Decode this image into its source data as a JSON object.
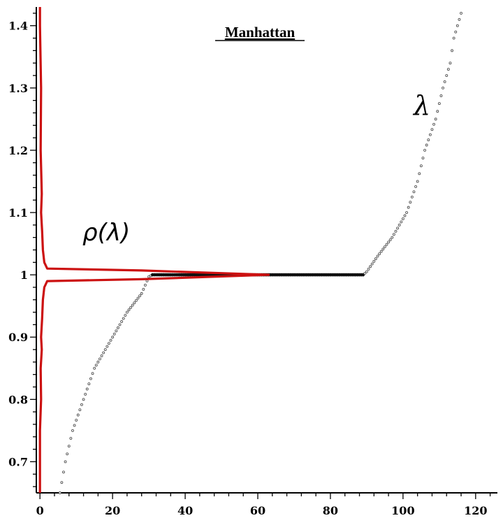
{
  "chart_data": {
    "type": "scatter",
    "title": "Manhattan",
    "xlabel": "",
    "ylabel": "",
    "xlim": [
      -1,
      126
    ],
    "ylim": [
      0.65,
      1.43
    ],
    "grid": false,
    "x_ticks": [
      "0",
      "20",
      "40",
      "60",
      "80",
      "100",
      "120"
    ],
    "y_ticks": [
      "0.7",
      "0.8",
      "0.9",
      "1",
      "1.1",
      "1.2",
      "1.3",
      "1.4"
    ],
    "annotations": [
      "λ",
      "ρ(λ)"
    ],
    "colors": {
      "lambda": "#555555",
      "lambda_flat": "#111111",
      "density": "#cc1111"
    },
    "series": [
      {
        "kind": "eigenvalues",
        "points": [
          [
            5.5,
            0.65
          ],
          [
            7,
            0.7
          ],
          [
            9,
            0.75
          ],
          [
            12,
            0.8
          ],
          [
            15,
            0.85
          ],
          [
            18,
            0.88
          ],
          [
            20,
            0.9
          ],
          [
            24,
            0.94
          ],
          [
            28,
            0.97
          ],
          [
            30,
            0.997
          ],
          [
            31,
            1.0
          ],
          [
            89,
            1.0
          ],
          [
            90,
            1.005
          ],
          [
            93,
            1.03
          ],
          [
            97,
            1.06
          ],
          [
            101,
            1.1
          ],
          [
            104,
            1.15
          ],
          [
            106,
            1.2
          ],
          [
            109,
            1.25
          ],
          [
            111,
            1.3
          ],
          [
            113,
            1.34
          ],
          [
            114,
            1.38
          ],
          [
            116,
            1.42
          ]
        ]
      },
      {
        "kind": "density",
        "points": [
          [
            0,
            0.65
          ],
          [
            0,
            0.7
          ],
          [
            0,
            0.75
          ],
          [
            0.3,
            0.8
          ],
          [
            0.2,
            0.85
          ],
          [
            0.5,
            0.88
          ],
          [
            0.3,
            0.9
          ],
          [
            0.6,
            0.93
          ],
          [
            0.8,
            0.96
          ],
          [
            1.2,
            0.98
          ],
          [
            2,
            0.99
          ],
          [
            28,
            0.993
          ],
          [
            63,
            1.0
          ],
          [
            28,
            1.007
          ],
          [
            2,
            1.01
          ],
          [
            1.2,
            1.02
          ],
          [
            0.8,
            1.04
          ],
          [
            0.6,
            1.07
          ],
          [
            0.3,
            1.1
          ],
          [
            0.5,
            1.13
          ],
          [
            0.2,
            1.2
          ],
          [
            0.3,
            1.3
          ],
          [
            0,
            1.4
          ],
          [
            0,
            1.43
          ]
        ]
      }
    ]
  }
}
